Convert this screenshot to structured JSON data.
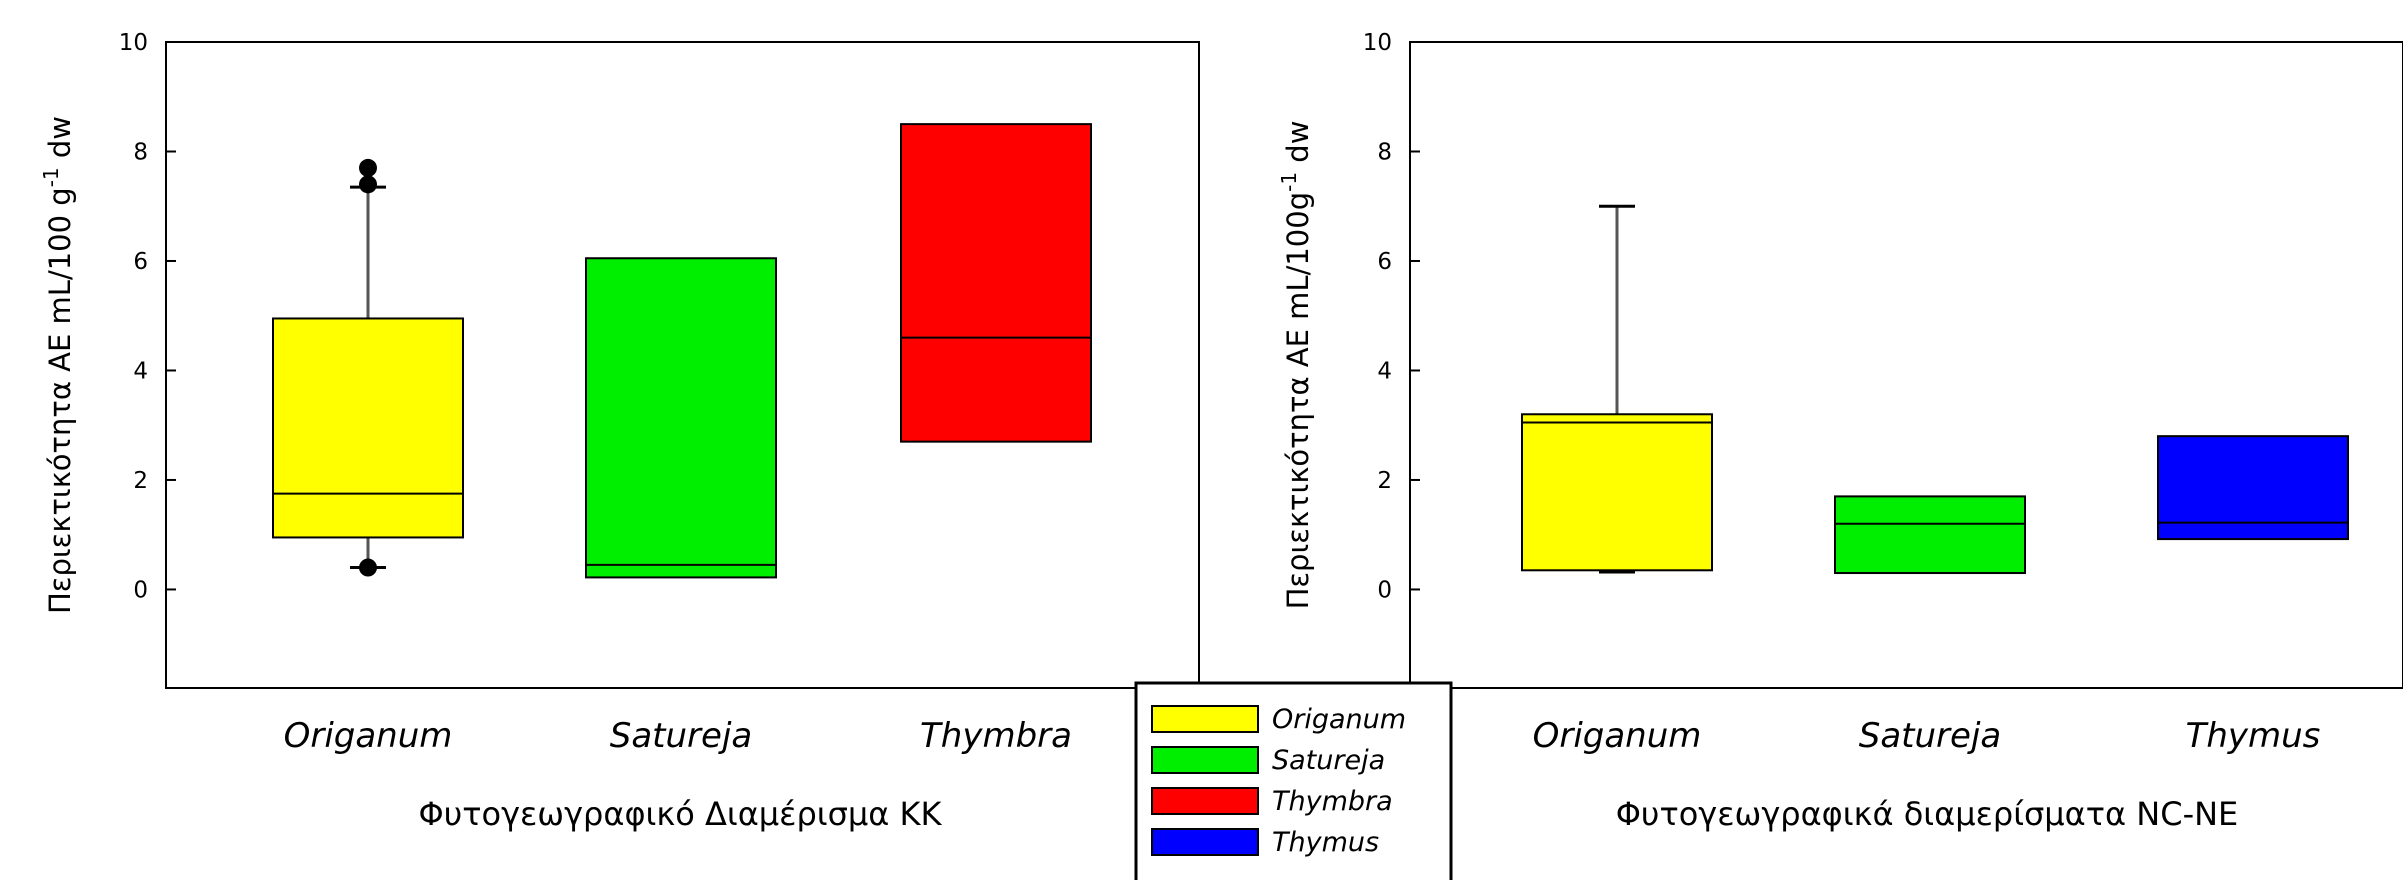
{
  "chart_data": [
    {
      "type": "box",
      "ylabel": "Περιεκτικότητα AE mL/100 g",
      "ylabel_sup": "-1",
      "ylabel_unit": " dw",
      "xlabel": "Φυτογεωγραφικό Διαμέρισμα ΚΚ",
      "ylim": [
        -1.8,
        10
      ],
      "yticks": [
        "0",
        "2",
        "4",
        "6",
        "8",
        "10"
      ],
      "categories": [
        "Origanum",
        "Satureja",
        "Thymbra"
      ],
      "boxes": [
        {
          "category": "Origanum",
          "color": "#ffff00",
          "q1": 0.95,
          "median": 1.75,
          "q3": 4.95,
          "whisker_low": 0.4,
          "whisker_high": 7.35,
          "outliers": [
            0.4,
            7.4,
            7.7
          ]
        },
        {
          "category": "Satureja",
          "color": "#00ee00",
          "q1": 0.22,
          "median": 0.45,
          "q3": 6.05
        },
        {
          "category": "Thymbra",
          "color": "#ff0000",
          "q1": 2.7,
          "median": 4.6,
          "q3": 8.5
        }
      ]
    },
    {
      "type": "box",
      "ylabel": "Περιεκτικότητα AE mL/100g",
      "ylabel_sup": "-1",
      "ylabel_unit": " dw",
      "xlabel": "Φυτογεωγραφικά διαμερίσματα NC-NE",
      "ylim": [
        -1.8,
        10
      ],
      "yticks": [
        "0",
        "2",
        "4",
        "6",
        "8",
        "10"
      ],
      "categories": [
        "Origanum",
        "Satureja",
        "Thymus"
      ],
      "boxes": [
        {
          "category": "Origanum",
          "color": "#ffff00",
          "q1": 0.35,
          "median": 3.05,
          "q3": 3.2,
          "whisker_low": 0.32,
          "whisker_high": 7.0
        },
        {
          "category": "Satureja",
          "color": "#00ee00",
          "q1": 0.3,
          "median": 1.2,
          "q3": 1.7
        },
        {
          "category": "Thymus",
          "color": "#0000ff",
          "q1": 0.92,
          "median": 1.22,
          "q3": 2.8
        }
      ]
    }
  ],
  "legend": [
    {
      "label": "Origanum",
      "color": "#ffff00"
    },
    {
      "label": "Satureja",
      "color": "#00ee00"
    },
    {
      "label": "Thymbra",
      "color": "#ff0000"
    },
    {
      "label": "Thymus",
      "color": "#0000ff"
    }
  ]
}
